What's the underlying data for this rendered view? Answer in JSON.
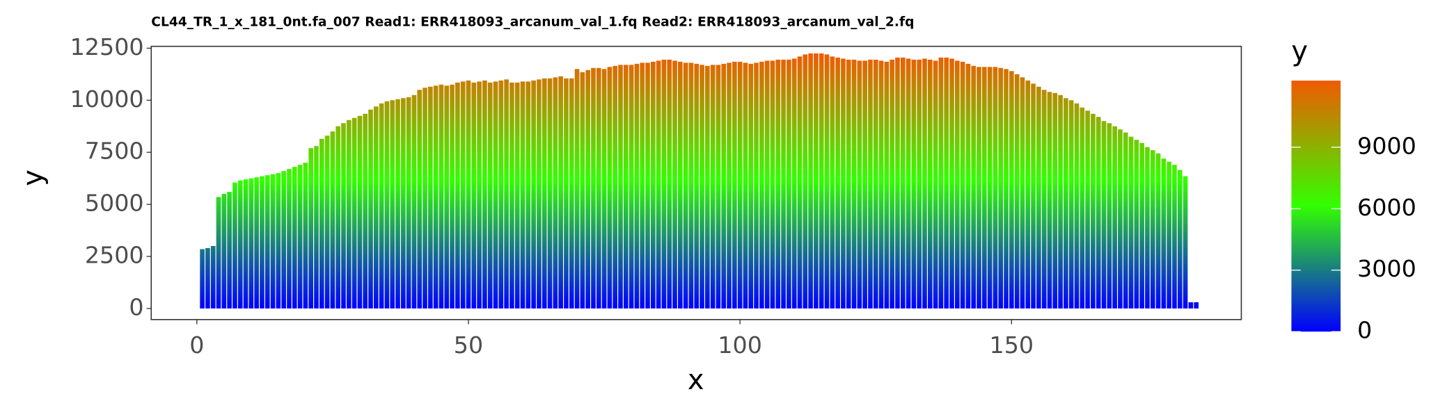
{
  "chart_data": {
    "type": "bar",
    "title": "CL44_TR_1_x_181_0nt.fa_007 Read1: ERR418093_arcanum_val_1.fq Read2: ERR418093_arcanum_val_2.fq",
    "x_label": "x",
    "y_label": "y",
    "legend_title": "y",
    "x": [
      1,
      2,
      3,
      4,
      5,
      6,
      7,
      8,
      9,
      10,
      11,
      12,
      13,
      14,
      15,
      16,
      17,
      18,
      19,
      20,
      21,
      22,
      23,
      24,
      25,
      26,
      27,
      28,
      29,
      30,
      31,
      32,
      33,
      34,
      35,
      36,
      37,
      38,
      39,
      40,
      41,
      42,
      43,
      44,
      45,
      46,
      47,
      48,
      49,
      50,
      51,
      52,
      53,
      54,
      55,
      56,
      57,
      58,
      59,
      60,
      61,
      62,
      63,
      64,
      65,
      66,
      67,
      68,
      69,
      70,
      71,
      72,
      73,
      74,
      75,
      76,
      77,
      78,
      79,
      80,
      81,
      82,
      83,
      84,
      85,
      86,
      87,
      88,
      89,
      90,
      91,
      92,
      93,
      94,
      95,
      96,
      97,
      98,
      99,
      100,
      101,
      102,
      103,
      104,
      105,
      106,
      107,
      108,
      109,
      110,
      111,
      112,
      113,
      114,
      115,
      116,
      117,
      118,
      119,
      120,
      121,
      122,
      123,
      124,
      125,
      126,
      127,
      128,
      129,
      130,
      131,
      132,
      133,
      134,
      135,
      136,
      137,
      138,
      139,
      140,
      141,
      142,
      143,
      144,
      145,
      146,
      147,
      148,
      149,
      150,
      151,
      152,
      153,
      154,
      155,
      156,
      157,
      158,
      159,
      160,
      161,
      162,
      163,
      164,
      165,
      166,
      167,
      168,
      169,
      170,
      171,
      172,
      173,
      174,
      175,
      176,
      177,
      178,
      179,
      180,
      181,
      182,
      183,
      184
    ],
    "values": [
      2850,
      2900,
      3000,
      5350,
      5500,
      5600,
      6050,
      6150,
      6200,
      6250,
      6300,
      6350,
      6400,
      6450,
      6500,
      6600,
      6700,
      6800,
      6900,
      7000,
      7700,
      7800,
      8150,
      8300,
      8500,
      8750,
      8900,
      9050,
      9150,
      9250,
      9350,
      9550,
      9700,
      9850,
      9950,
      10000,
      10050,
      10100,
      10150,
      10250,
      10500,
      10600,
      10650,
      10700,
      10750,
      10700,
      10750,
      10850,
      10900,
      10950,
      10850,
      10900,
      10950,
      10850,
      10900,
      10950,
      11000,
      10850,
      10850,
      10900,
      10900,
      10950,
      11000,
      11050,
      11050,
      11100,
      11150,
      11050,
      11050,
      11500,
      11350,
      11450,
      11550,
      11550,
      11500,
      11600,
      11650,
      11700,
      11700,
      11700,
      11750,
      11800,
      11800,
      11850,
      11900,
      11950,
      11950,
      11900,
      11850,
      11800,
      11800,
      11750,
      11700,
      11650,
      11700,
      11700,
      11750,
      11800,
      11850,
      11850,
      11800,
      11750,
      11800,
      11850,
      11900,
      11900,
      11950,
      11950,
      11950,
      12000,
      12100,
      12200,
      12250,
      12250,
      12250,
      12200,
      12100,
      12050,
      12000,
      11950,
      11950,
      11900,
      11900,
      11950,
      11950,
      11900,
      11850,
      11950,
      12050,
      12050,
      12000,
      11950,
      11950,
      12000,
      11950,
      11900,
      12050,
      12050,
      12000,
      11900,
      11850,
      11750,
      11650,
      11600,
      11600,
      11600,
      11600,
      11550,
      11500,
      11400,
      11250,
      11100,
      10950,
      10800,
      10650,
      10500,
      10400,
      10350,
      10250,
      10100,
      10000,
      9850,
      9650,
      9500,
      9350,
      9200,
      9000,
      8900,
      8750,
      8600,
      8450,
      8250,
      8100,
      7950,
      7750,
      7600,
      7450,
      7200,
      7050,
      6900,
      6650,
      6350,
      300,
      300
    ],
    "xlim": [
      -8.4,
      192.3
    ],
    "xticks": [
      0,
      50,
      100,
      150
    ],
    "ylim": [
      -534,
      12590
    ],
    "yticks": [
      0,
      2500,
      5000,
      7500,
      10000,
      12500
    ],
    "color_stops": [
      {
        "value": 0,
        "color": "#0000ff"
      },
      {
        "value": 6150,
        "color": "#33ff00"
      },
      {
        "value": 12250,
        "color": "#f05a00"
      }
    ],
    "colorbar_lim": [
      0,
      12250
    ],
    "colorbar_ticks": [
      0,
      3000,
      6000,
      9000
    ]
  }
}
